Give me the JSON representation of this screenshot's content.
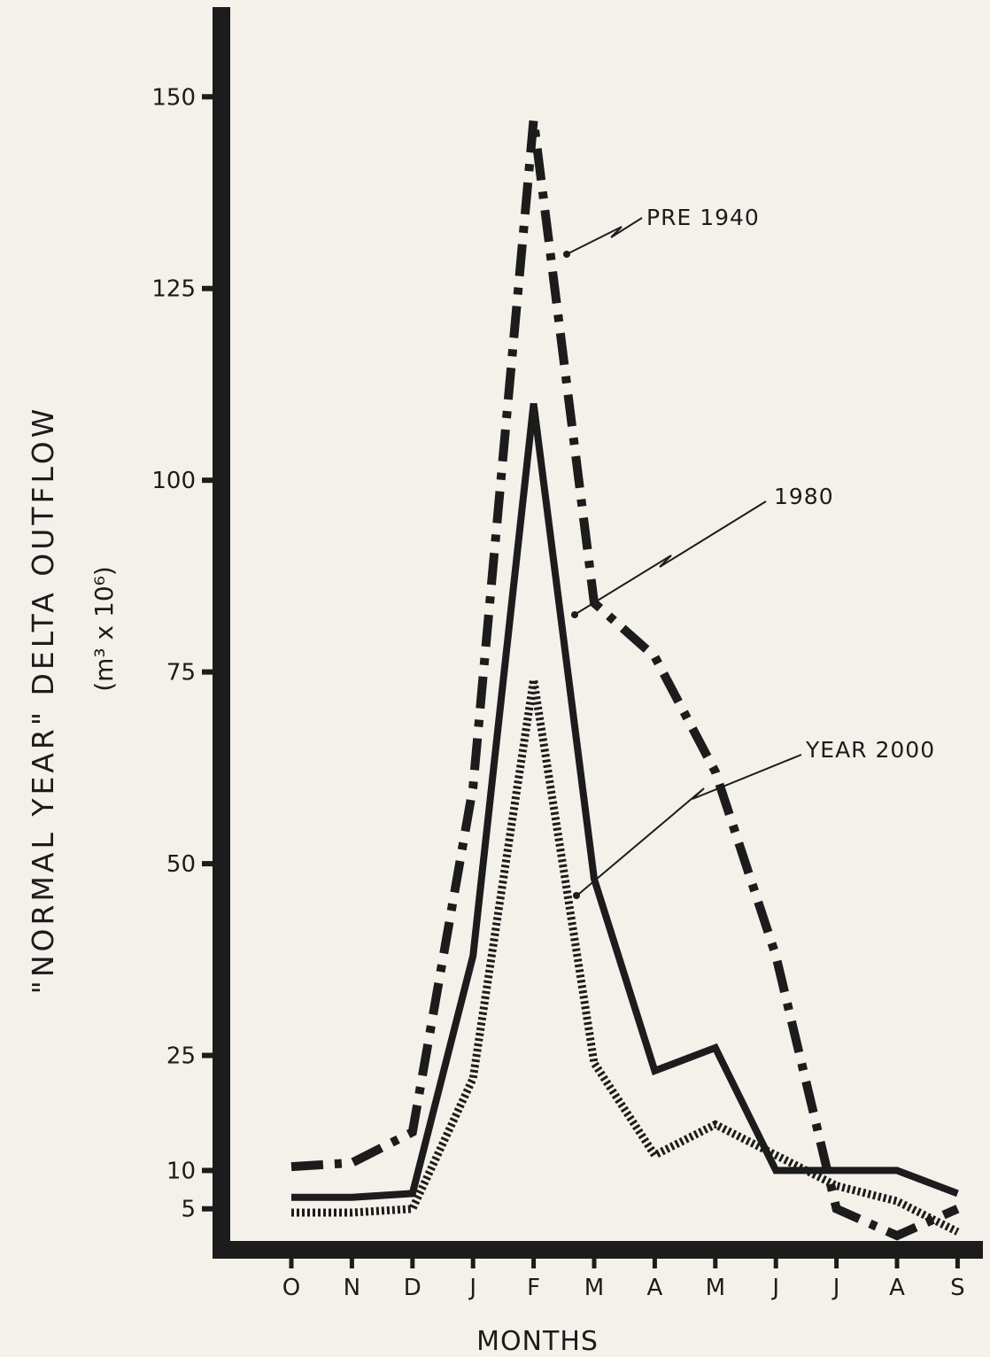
{
  "chart_data": {
    "type": "line",
    "categories": [
      "O",
      "N",
      "D",
      "J",
      "F",
      "M",
      "A",
      "M",
      "J",
      "J",
      "A",
      "S"
    ],
    "ylabel": "\"NORMAL YEAR\" DELTA OUTFLOW",
    "ylabel_unit": "(m³ x 10⁶)",
    "xlabel": "MONTHS",
    "y_ticks": [
      5,
      10,
      25,
      50,
      75,
      100,
      125,
      150
    ],
    "ylim": [
      0,
      158
    ],
    "grid": false,
    "legend": "annotations with arrows",
    "series": [
      {
        "name": "PRE 1940",
        "style": "dash-dot",
        "values": [
          10.5,
          11,
          15,
          60,
          147,
          84,
          77,
          62,
          38,
          5,
          1.5,
          5
        ]
      },
      {
        "name": "1980",
        "style": "solid",
        "values": [
          6.5,
          6.5,
          7,
          38,
          110,
          48,
          23,
          26,
          10,
          10,
          10,
          7
        ]
      },
      {
        "name": "YEAR 2000",
        "style": "dotted",
        "values": [
          4.5,
          4.5,
          5,
          22,
          74,
          24,
          12,
          16,
          12,
          8,
          6,
          2
        ]
      }
    ]
  }
}
